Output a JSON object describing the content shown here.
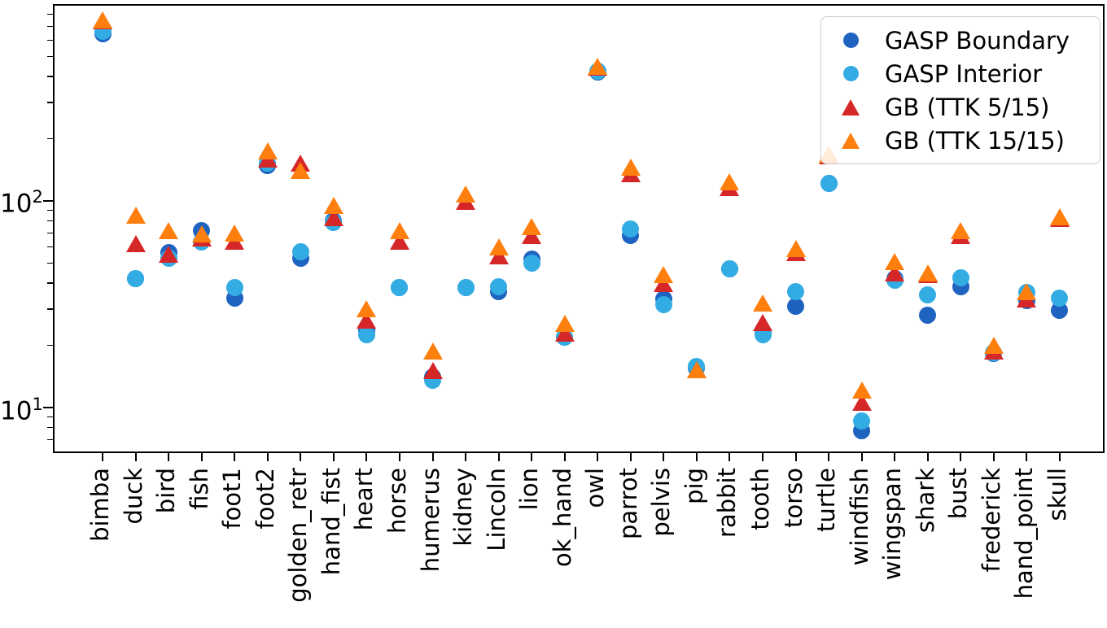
{
  "yaxis": {
    "ticks": [
      {
        "base": "10",
        "exp": "2",
        "value": 100
      },
      {
        "base": "10",
        "exp": "1",
        "value": 10
      }
    ]
  },
  "legend": {
    "items": [
      {
        "label": "GASP Boundary",
        "marker": "circle",
        "color": "#1f63c1"
      },
      {
        "label": "GASP Interior",
        "marker": "circle",
        "color": "#33ace4"
      },
      {
        "label": "GB (TTK 5/15)",
        "marker": "triangle",
        "color": "#d62728"
      },
      {
        "label": "GB (TTK 15/15)",
        "marker": "triangle",
        "color": "#ff7f0e"
      }
    ]
  },
  "chart_data": {
    "type": "scatter",
    "yscale": "log",
    "ylim": [
      6,
      900
    ],
    "grid": false,
    "legend_position": "upper right",
    "categories": [
      "bimba",
      "duck",
      "bird",
      "fish",
      "foot1",
      "foot2",
      "golden_retr",
      "hand_fist",
      "heart",
      "horse",
      "humerus",
      "kidney",
      "Lincoln",
      "lion",
      "ok_hand",
      "owl",
      "parrot",
      "pelvis",
      "pig",
      "rabbit",
      "tooth",
      "torso",
      "turtle",
      "windfish",
      "wingspan",
      "shark",
      "bust",
      "frederick",
      "hand_point",
      "skull"
    ],
    "series": [
      {
        "name": "GASP Boundary",
        "marker": "circle",
        "color": "#1f63c1",
        "values": [
          645,
          42,
          56,
          72,
          34,
          148,
          53,
          80,
          23.5,
          38,
          14,
          38,
          36.5,
          52.5,
          22,
          420,
          68,
          33.5,
          15.5,
          47,
          23,
          31,
          122,
          7.7,
          42,
          28,
          38.5,
          18.2,
          33,
          29.5
        ]
      },
      {
        "name": "GASP Interior",
        "marker": "circle",
        "color": "#33ace4",
        "values": [
          665,
          42,
          53,
          63,
          38,
          152,
          57,
          79,
          22.5,
          38,
          13.6,
          38,
          38.5,
          50,
          22,
          425,
          73,
          31.6,
          15.8,
          47,
          22.5,
          36.5,
          122,
          8.6,
          41.5,
          35,
          42.5,
          18.4,
          36,
          34
        ]
      },
      {
        "name": "GB (TTK 5/15)",
        "marker": "triangle",
        "color": "#d62728",
        "values": [
          745,
          62,
          55,
          66,
          64,
          160,
          153,
          83,
          26.5,
          64,
          15.1,
          100,
          54,
          68,
          23,
          445,
          136,
          40,
          15.2,
          116,
          25.8,
          56,
          165,
          10.6,
          45,
          44,
          68,
          18.7,
          33.5,
          82
        ]
      },
      {
        "name": "GB (TTK 15/15)",
        "marker": "triangle",
        "color": "#ff7f0e",
        "values": [
          755,
          85,
          72,
          69,
          70,
          175,
          140,
          95,
          30,
          72,
          18.7,
          108,
          60,
          75,
          25.5,
          450,
          146,
          44,
          15.2,
          124,
          32,
          59,
          168,
          12.1,
          51,
          45,
          72,
          20,
          36.5,
          83.5
        ]
      }
    ]
  }
}
